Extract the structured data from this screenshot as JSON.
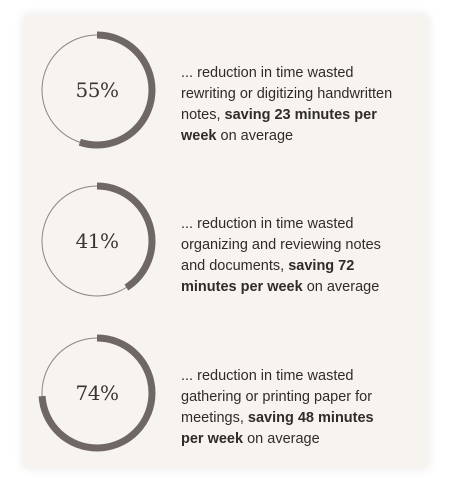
{
  "colors": {
    "card_bg": "#f7f4ef",
    "ring_track": "#8a8580",
    "ring_fill": "#6f6763",
    "text": "#2f2b29"
  },
  "stats": [
    {
      "percent": "55%",
      "fraction": 0.55,
      "text_before": "... reduction in time wasted rewriting or digitizing handwritten notes, ",
      "text_bold": "saving 23 minutes per week",
      "text_after": " on average"
    },
    {
      "percent": "41%",
      "fraction": 0.41,
      "text_before": "... reduction in time wasted organizing and reviewing notes and documents, ",
      "text_bold": "saving 72 minutes per week",
      "text_after": " on average"
    },
    {
      "percent": "74%",
      "fraction": 0.74,
      "text_before": "... reduction in time wasted gathering or printing paper for meetings, ",
      "text_bold": "saving 48 minutes per week",
      "text_after": " on average"
    }
  ]
}
